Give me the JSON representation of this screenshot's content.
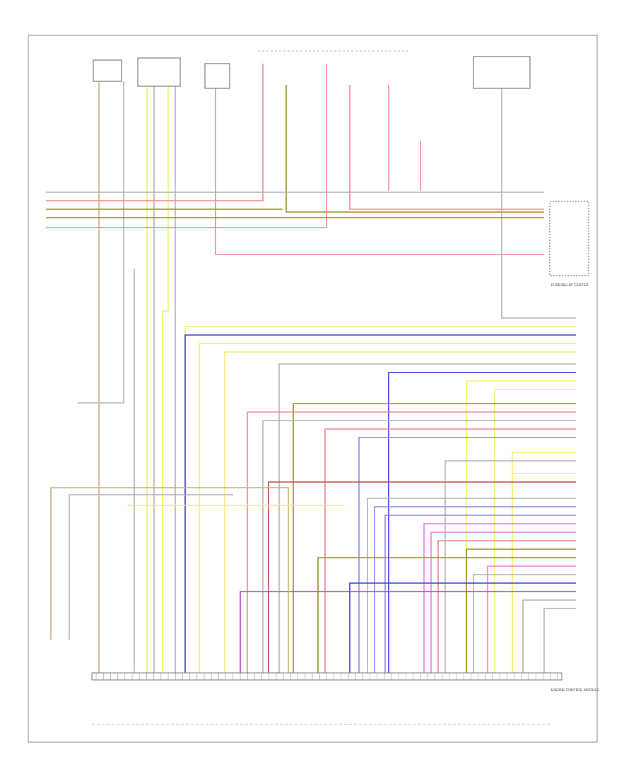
{
  "diagram": {
    "components": [
      {
        "label": "FUSE/RELAY CENTER"
      },
      {
        "label": "ENGINE CONTROL MODULE"
      }
    ]
  }
}
